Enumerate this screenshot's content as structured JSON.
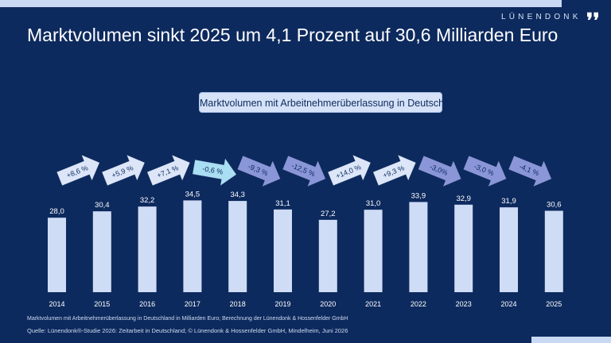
{
  "brand": {
    "name": "LÜNENDONK",
    "mark": "❜❜"
  },
  "title": "Marktvolumen sinkt 2025 um 4,1 Prozent auf 30,6 Milliarden Euro",
  "colors": {
    "background": "#0d2a5e",
    "bar": "#cfdcf5",
    "arrow_up": "#dce6f8",
    "arrow_down": "#8a96d8",
    "arrow_neutral": "#a9def3",
    "text_light": "#ffffff"
  },
  "footnote": "Marktvolumen mit Arbeitnehmerüberlassung in Deutschland in Milliarden Euro; Berechnung der Lünendonk & Hossenfelder GmbH",
  "source": "Quelle: Lünendonk®-Studie 2026: Zeitarbeit in Deutschland; © Lünendonk & Hossenfelder GmbH, Mindelheim, Juni 2026",
  "chart_data": {
    "type": "bar",
    "title": "Marktvolumen mit Arbeitnehmerüberlassung in Deutschland",
    "categories": [
      "2014",
      "2015",
      "2016",
      "2017",
      "2018",
      "2019",
      "2020",
      "2021",
      "2022",
      "2023",
      "2024",
      "2025"
    ],
    "values": [
      28.0,
      30.4,
      32.2,
      34.5,
      34.3,
      31.1,
      27.2,
      31.0,
      33.9,
      32.9,
      31.9,
      30.6
    ],
    "value_labels": [
      "28,0",
      "30,4",
      "32,2",
      "34,5",
      "34,3",
      "31,1",
      "27,2",
      "31,0",
      "33,9",
      "32,9",
      "31,9",
      "30,6"
    ],
    "changes": [
      "+8,6 %",
      "+5,9 %",
      "+7,1 %",
      "-0,6 %",
      "-9,3 %",
      "-12,5 %",
      "+14,0 %",
      "+9,3 %",
      "-3,0%",
      "-3,0 %",
      "-4,1 %"
    ],
    "change_direction": [
      "up",
      "up",
      "up",
      "neutral",
      "down",
      "down",
      "up",
      "up",
      "down",
      "down",
      "down"
    ],
    "grid": false,
    "legend": "none"
  }
}
